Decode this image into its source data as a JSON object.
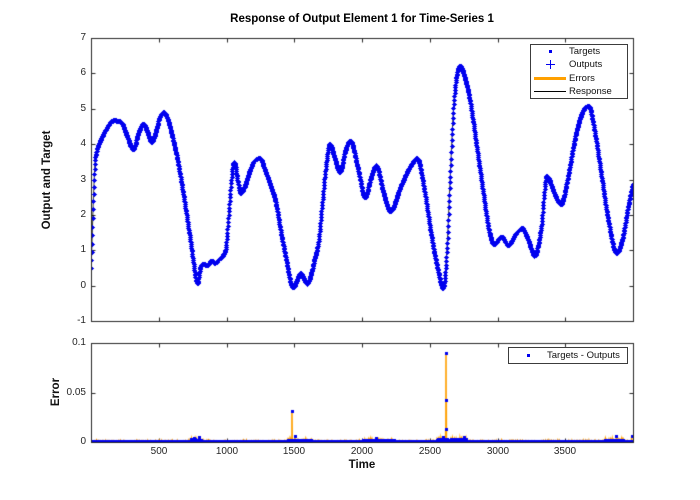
{
  "title": "Response of Output Element 1 for Time-Series 1",
  "colors": {
    "blue": "#0000ee",
    "orange": "#ffa000",
    "response_black": "#000000",
    "axis": "#262626",
    "background": "#ffffff"
  },
  "top_plot": {
    "ylabel": "Output and Target",
    "ylim": [
      -1,
      7
    ],
    "ytick_values": [
      7,
      6,
      5,
      4,
      3,
      2,
      1,
      0,
      -1
    ],
    "ytick_labels": [
      "7",
      "6",
      "5",
      "4",
      "3",
      "2",
      "1",
      "0",
      "-1"
    ],
    "xlim": [
      0,
      4000
    ],
    "xtick_values": [
      500,
      1000,
      1500,
      2000,
      2500,
      3000,
      3500
    ],
    "xtick_labels_shown": false
  },
  "bottom_plot": {
    "ylabel": "Error",
    "xlabel": "Time",
    "ylim": [
      0,
      0.1
    ],
    "ytick_values": [
      0.1,
      0.05,
      0
    ],
    "ytick_labels": [
      "0.1",
      "0.05",
      "0"
    ],
    "xlim": [
      0,
      4000
    ],
    "xtick_values": [
      500,
      1000,
      1500,
      2000,
      2500,
      3000,
      3500
    ],
    "xtick_labels": [
      "500",
      "1000",
      "1500",
      "2000",
      "2500",
      "3000",
      "3500"
    ]
  },
  "legend_top": {
    "items": [
      {
        "label": "Targets",
        "marker": "dot-marker"
      },
      {
        "label": "Outputs",
        "marker": "plus-marker"
      },
      {
        "label": "Errors",
        "marker": "orange-line-marker"
      },
      {
        "label": "Response",
        "marker": "black-line-marker"
      }
    ]
  },
  "legend_bottom": {
    "items": [
      {
        "label": "Targets - Outputs",
        "marker": "dot-marker"
      }
    ]
  },
  "chart_data": [
    {
      "type": "scatter",
      "title": "Response of Output Element 1 for Time-Series 1",
      "ylabel": "Output and Target",
      "xlim": [
        0,
        4000
      ],
      "ylim": [
        -1,
        7
      ],
      "grid": false,
      "legend_position": "top-right",
      "legend": [
        "Targets",
        "Outputs",
        "Errors",
        "Response"
      ],
      "note": "Targets, Outputs and Response curves coincide; control points (t, value) of the common curve",
      "sample_step": 2,
      "series_points": [
        [
          1,
          0.5
        ],
        [
          8,
          1.3
        ],
        [
          18,
          2.5
        ],
        [
          30,
          3.5
        ],
        [
          45,
          3.85
        ],
        [
          63,
          4.05
        ],
        [
          115,
          4.45
        ],
        [
          163,
          4.67
        ],
        [
          220,
          4.63
        ],
        [
          268,
          4.2
        ],
        [
          310,
          3.85
        ],
        [
          353,
          4.35
        ],
        [
          386,
          4.58
        ],
        [
          415,
          4.35
        ],
        [
          448,
          4.05
        ],
        [
          477,
          4.35
        ],
        [
          510,
          4.8
        ],
        [
          534,
          4.9
        ],
        [
          562,
          4.75
        ],
        [
          591,
          4.35
        ],
        [
          643,
          3.45
        ],
        [
          691,
          2.35
        ],
        [
          738,
          1.15
        ],
        [
          786,
          0.07
        ],
        [
          805,
          0.5
        ],
        [
          829,
          0.62
        ],
        [
          857,
          0.58
        ],
        [
          886,
          0.7
        ],
        [
          914,
          0.65
        ],
        [
          943,
          0.75
        ],
        [
          971,
          0.85
        ],
        [
          995,
          1.1
        ],
        [
          1019,
          2.2
        ],
        [
          1043,
          3.3
        ],
        [
          1057,
          3.5
        ],
        [
          1081,
          3.0
        ],
        [
          1104,
          2.62
        ],
        [
          1133,
          2.8
        ],
        [
          1171,
          3.25
        ],
        [
          1209,
          3.55
        ],
        [
          1247,
          3.6
        ],
        [
          1285,
          3.25
        ],
        [
          1323,
          2.85
        ],
        [
          1366,
          2.3
        ],
        [
          1404,
          1.45
        ],
        [
          1442,
          0.7
        ],
        [
          1475,
          0.05
        ],
        [
          1494,
          -0.05
        ],
        [
          1523,
          0.2
        ],
        [
          1546,
          0.35
        ],
        [
          1570,
          0.2
        ],
        [
          1594,
          0.05
        ],
        [
          1618,
          0.25
        ],
        [
          1646,
          0.7
        ],
        [
          1680,
          1.3
        ],
        [
          1708,
          2.4
        ],
        [
          1737,
          3.5
        ],
        [
          1761,
          4.0
        ],
        [
          1799,
          3.6
        ],
        [
          1837,
          3.2
        ],
        [
          1875,
          3.8
        ],
        [
          1913,
          4.1
        ],
        [
          1970,
          3.3
        ],
        [
          2022,
          2.5
        ],
        [
          2065,
          3.05
        ],
        [
          2103,
          3.4
        ],
        [
          2160,
          2.6
        ],
        [
          2208,
          2.1
        ],
        [
          2284,
          2.8
        ],
        [
          2360,
          3.4
        ],
        [
          2407,
          3.6
        ],
        [
          2460,
          2.7
        ],
        [
          2512,
          1.4
        ],
        [
          2560,
          0.45
        ],
        [
          2598,
          -0.07
        ],
        [
          2626,
          1.0
        ],
        [
          2650,
          3.0
        ],
        [
          2678,
          5.2
        ],
        [
          2707,
          6.1
        ],
        [
          2726,
          6.2
        ],
        [
          2750,
          6.0
        ],
        [
          2793,
          5.3
        ],
        [
          2840,
          4.1
        ],
        [
          2888,
          2.8
        ],
        [
          2935,
          1.6
        ],
        [
          2973,
          1.18
        ],
        [
          3030,
          1.38
        ],
        [
          3078,
          1.15
        ],
        [
          3140,
          1.5
        ],
        [
          3182,
          1.62
        ],
        [
          3225,
          1.3
        ],
        [
          3273,
          0.85
        ],
        [
          3320,
          1.6
        ],
        [
          3363,
          3.1
        ],
        [
          3420,
          2.6
        ],
        [
          3468,
          2.3
        ],
        [
          3511,
          2.9
        ],
        [
          3568,
          4.1
        ],
        [
          3625,
          4.9
        ],
        [
          3672,
          5.08
        ],
        [
          3715,
          4.4
        ],
        [
          3767,
          3.1
        ],
        [
          3815,
          1.9
        ],
        [
          3877,
          0.92
        ],
        [
          3920,
          1.3
        ],
        [
          3967,
          2.3
        ],
        [
          4000,
          2.9
        ]
      ]
    },
    {
      "type": "scatter",
      "ylabel": "Error",
      "xlabel": "Time",
      "xlim": [
        0,
        4000
      ],
      "ylim": [
        0,
        0.1
      ],
      "grid": false,
      "legend_position": "top-right",
      "legend": [
        "Targets - Outputs"
      ],
      "note": "error = targets - outputs; near zero everywhere except spikes",
      "sample_step": 2,
      "noise_seed": 7,
      "noise_max": 0.0012,
      "noise_boost_regions": [
        [
          730,
          810,
          2.5
        ],
        [
          1450,
          1630,
          2.0
        ],
        [
          2000,
          2250,
          1.8
        ],
        [
          2550,
          2770,
          2.5
        ],
        [
          3790,
          3930,
          2.0
        ]
      ],
      "bump_points": [
        [
          760,
          0.0045
        ],
        [
          795,
          0.005
        ],
        [
          1505,
          0.006
        ],
        [
          2100,
          0.004
        ],
        [
          2600,
          0.005
        ],
        [
          2755,
          0.005
        ],
        [
          3877,
          0.006
        ],
        [
          3990,
          0.006
        ]
      ],
      "spike_points": [
        [
          1483,
          0.031
        ],
        [
          2618,
          0.013
        ],
        [
          2620,
          0.09
        ],
        [
          2622,
          0.042
        ]
      ]
    }
  ]
}
